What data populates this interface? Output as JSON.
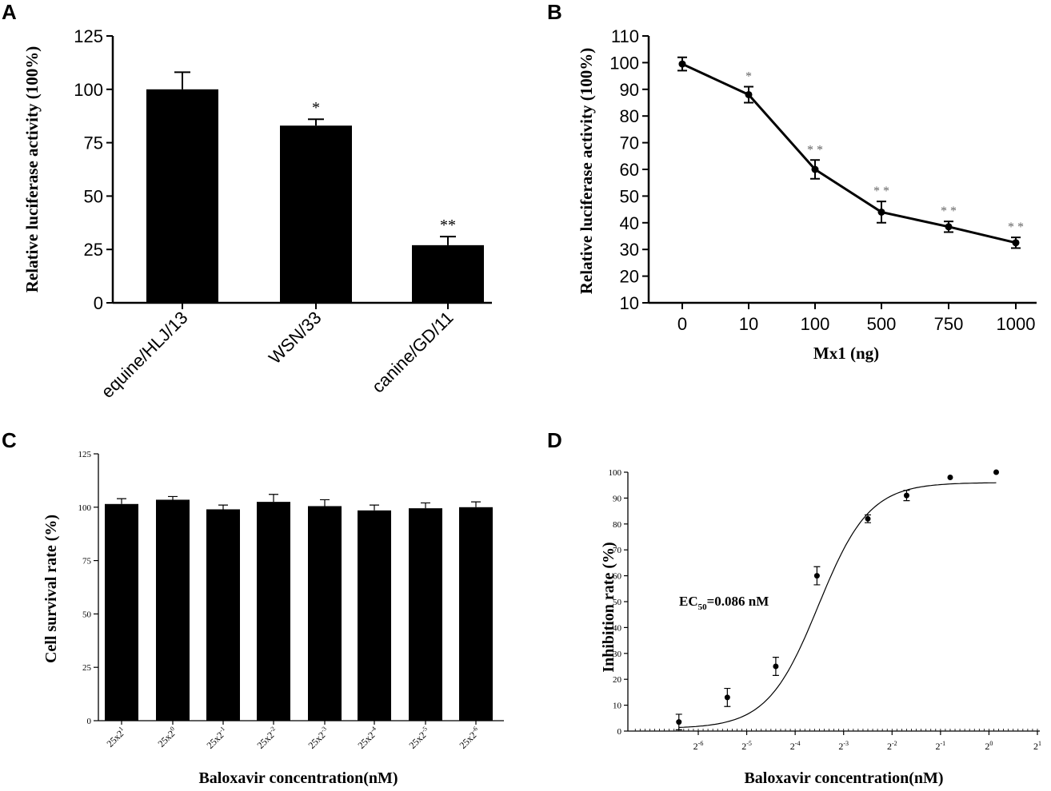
{
  "panel_letters": [
    "A",
    "B",
    "C",
    "D"
  ],
  "chart_data": [
    {
      "panel": "A",
      "type": "bar",
      "categories": [
        "equine/HLJ/13",
        "WSN/33",
        "canine/GD/11"
      ],
      "values": [
        100,
        83,
        27
      ],
      "errors": [
        8,
        3,
        4
      ],
      "significance": [
        "",
        "*",
        "**"
      ],
      "ylabel": "Relative luciferase activity (100%)",
      "xlabel": "",
      "ylim": [
        0,
        125
      ],
      "yticks": [
        0,
        25,
        50,
        75,
        100,
        125
      ]
    },
    {
      "panel": "B",
      "type": "line",
      "categories": [
        "0",
        "10",
        "100",
        "500",
        "750",
        "1000"
      ],
      "values": [
        99.5,
        88,
        60,
        44,
        38.5,
        32.5
      ],
      "errors": [
        2.5,
        3,
        3.5,
        4,
        2,
        2
      ],
      "significance": [
        "",
        "*",
        "* *",
        "* *",
        "* *",
        "* *"
      ],
      "xlabel": "Mx1 (ng)",
      "ylabel": "Relative luciferase activity (100%)",
      "ylim": [
        10,
        110
      ],
      "yticks": [
        10,
        20,
        30,
        40,
        50,
        60,
        70,
        80,
        90,
        100,
        110
      ]
    },
    {
      "panel": "C",
      "type": "bar",
      "categories": [
        "25x2",
        "25x2",
        "25x2",
        "25x2",
        "25x2",
        "25x2",
        "25x2",
        "25x2"
      ],
      "category_exponents": [
        "1",
        "0",
        "-1",
        "-2",
        "-3",
        "-4",
        "-5",
        "-6"
      ],
      "values": [
        101.5,
        103.5,
        99,
        102.5,
        100.5,
        98.5,
        99.5,
        100
      ],
      "errors": [
        2.5,
        1.5,
        2,
        3.5,
        3,
        2.5,
        2.5,
        2.5
      ],
      "xlabel": "Baloxavir  concentration(nM)",
      "ylabel": "Cell survival rate (%)",
      "ylim": [
        0,
        125
      ],
      "yticks": [
        0,
        25,
        50,
        75,
        100,
        125
      ]
    },
    {
      "panel": "D",
      "type": "scatter",
      "x_log2": [
        -6.4,
        -5.4,
        -4.4,
        -3.55,
        -2.5,
        -1.7,
        -0.8,
        0.15
      ],
      "y": [
        3.5,
        13,
        25,
        60,
        82,
        91,
        98,
        100
      ],
      "errors": [
        3,
        3.5,
        3.5,
        3.5,
        1.5,
        2,
        0,
        0
      ],
      "fit_curve": {
        "model": "sigmoid",
        "ec50_log2": -3.52,
        "slope": 1.9,
        "bottom": 1,
        "top": 96
      },
      "annotation_main": "EC",
      "annotation_sub": "50",
      "annotation_rest": "=0.086 nM",
      "xlabel": "Baloxavir  concentration(nM)",
      "ylabel": "Inhibition rate (%)",
      "xtick_base": "2",
      "xtick_exponents": [
        "-6",
        "-5",
        "-4",
        "-3",
        "-2",
        "-1",
        "0",
        "1"
      ],
      "ylim": [
        0,
        100
      ],
      "yticks": [
        0,
        10,
        20,
        30,
        40,
        50,
        60,
        70,
        80,
        90,
        100
      ]
    }
  ]
}
